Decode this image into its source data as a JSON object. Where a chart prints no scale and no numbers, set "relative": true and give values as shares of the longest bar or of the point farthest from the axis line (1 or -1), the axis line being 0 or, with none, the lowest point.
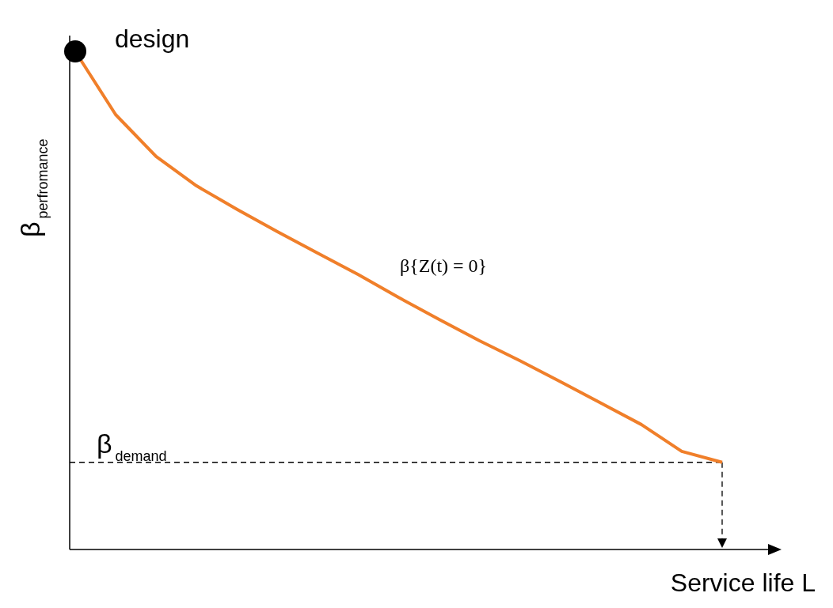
{
  "chart_data": {
    "type": "line",
    "relative": true,
    "xlabel": "Service life L",
    "ylabel": "β$_{perfromance}$",
    "categories": [
      null,
      null,
      null,
      null,
      null,
      null,
      null,
      null,
      null,
      null,
      null,
      null,
      null,
      null,
      null,
      null,
      null
    ],
    "series": [
      {
        "color": "#f07f2a",
        "values": [
          1,
          0.873,
          0.789,
          0.73,
          0.683,
          0.638,
          0.595,
          0.552,
          0.506,
          0.462,
          0.419,
          0.379,
          0.337,
          0.294,
          0.251,
          0.197,
          0.175
        ]
      }
    ],
    "ref_lines": [
      {
        "axis": "y",
        "value": 0.175,
        "label": "β$_{demand}$",
        "color": "#000000",
        "line_style": "dashed"
      }
    ],
    "annotations": [
      "design",
      "β{Z(t) = 0}"
    ],
    "marker": "none",
    "line_style": "solid"
  }
}
